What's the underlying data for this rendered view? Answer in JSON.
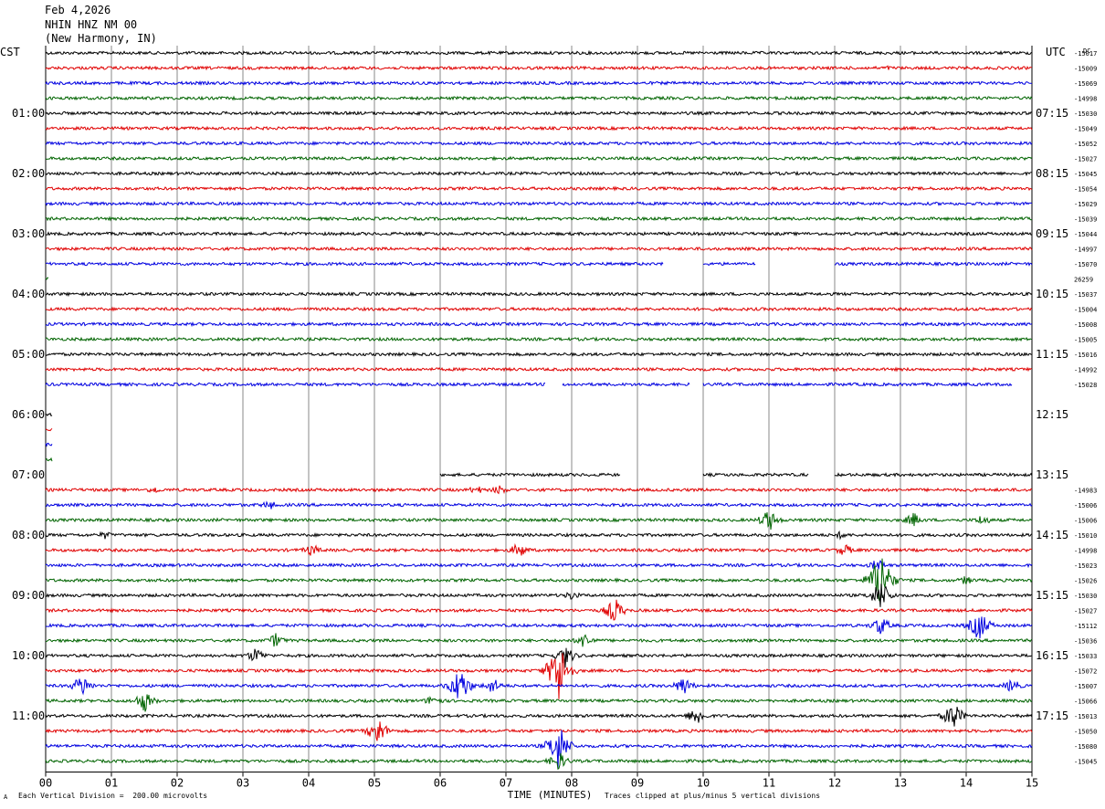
{
  "header": {
    "date": "Feb 4,2026",
    "station": "NHIN HNZ NM 00",
    "location": "(New Harmony, IN)"
  },
  "left_label": "CST",
  "right_label": "UTC",
  "dc_label": "DC",
  "footer": {
    "note_left": "Each Vertical Division =  200.00 microvolts",
    "note_right": "Traces clipped at plus/minus 5 vertical divisions",
    "corner_mark": "A"
  },
  "chart_data": {
    "type": "line",
    "title": "",
    "xlabel": "TIME (MINUTES)",
    "xlim": [
      0,
      15
    ],
    "x_ticks": [
      "00",
      "01",
      "02",
      "03",
      "04",
      "05",
      "06",
      "07",
      "08",
      "09",
      "10",
      "11",
      "12",
      "13",
      "14",
      "15"
    ],
    "trace_colors": [
      "#000000",
      "#e00000",
      "#0000e0",
      "#006400"
    ],
    "left_time_labels": [
      "01:00",
      "02:00",
      "03:00",
      "04:00",
      "05:00",
      "06:00",
      "07:00",
      "08:00",
      "09:00",
      "10:00",
      "11:00"
    ],
    "right_time_labels": [
      "07:15",
      "08:15",
      "09:15",
      "10:15",
      "11:15",
      "12:15",
      "13:15",
      "14:15",
      "15:15",
      "16:15",
      "17:15"
    ],
    "time_label_rows": [
      4,
      8,
      12,
      16,
      20,
      24,
      28,
      32,
      36,
      40,
      44
    ],
    "dc_values": [
      "-15017",
      "-15009",
      "-15069",
      "-14998",
      "-15030",
      "-15049",
      "-15052",
      "-15027",
      "-15045",
      "-15054",
      "-15029",
      "-15039",
      "-15044",
      "-14997",
      "-15070",
      "26259",
      "-15037",
      "-15004",
      "-15008",
      "-15005",
      "-15016",
      "-14992",
      "-15028",
      "",
      "",
      "",
      "",
      "",
      "",
      "-14983",
      "-15006",
      "-15006",
      "-15010",
      "-14998",
      "-15023",
      "-15026",
      "-15030",
      "-15027",
      "-15112",
      "-15036",
      "-15033",
      "-15072",
      "-15007",
      "-15066",
      "-15013",
      "-15050",
      "-15080",
      "-15045"
    ],
    "rows": 48,
    "gaps": [
      {
        "row": 14,
        "from": 9.4,
        "to": 10.0
      },
      {
        "row": 14,
        "from": 10.8,
        "to": 12.0
      },
      {
        "row": 15,
        "from": 0.05,
        "to": 15
      },
      {
        "row": 22,
        "from": 7.6,
        "to": 7.85
      },
      {
        "row": 22,
        "from": 9.8,
        "to": 10.0
      },
      {
        "row": 22,
        "from": 14.7,
        "to": 15
      },
      {
        "row": 23,
        "from": 0,
        "to": 15
      },
      {
        "row": 24,
        "from": 0.1,
        "to": 15
      },
      {
        "row": 25,
        "from": 0.1,
        "to": 15
      },
      {
        "row": 26,
        "from": 0.1,
        "to": 15
      },
      {
        "row": 27,
        "from": 0.1,
        "to": 15
      },
      {
        "row": 28,
        "from": 0,
        "to": 6.0
      },
      {
        "row": 28,
        "from": 8.75,
        "to": 10.0
      },
      {
        "row": 28,
        "from": 11.6,
        "to": 12.0
      }
    ],
    "events": [
      {
        "row": 1,
        "x": 12.8,
        "amp": 3
      },
      {
        "row": 29,
        "x": 1.65,
        "amp": 5
      },
      {
        "row": 29,
        "x": 6.55,
        "amp": 6
      },
      {
        "row": 29,
        "x": 6.9,
        "amp": 6
      },
      {
        "row": 30,
        "x": 3.4,
        "amp": 6
      },
      {
        "row": 31,
        "x": 11.0,
        "amp": 14
      },
      {
        "row": 31,
        "x": 13.2,
        "amp": 9
      },
      {
        "row": 31,
        "x": 14.25,
        "amp": 7
      },
      {
        "row": 32,
        "x": 0.9,
        "amp": 5
      },
      {
        "row": 32,
        "x": 12.1,
        "amp": 5
      },
      {
        "row": 33,
        "x": 4.05,
        "amp": 8
      },
      {
        "row": 33,
        "x": 7.2,
        "amp": 10
      },
      {
        "row": 33,
        "x": 12.15,
        "amp": 8
      },
      {
        "row": 34,
        "x": 12.65,
        "amp": 8
      },
      {
        "row": 35,
        "x": 12.7,
        "amp": 40
      },
      {
        "row": 35,
        "x": 14.0,
        "amp": 6
      },
      {
        "row": 36,
        "x": 8.0,
        "amp": 6
      },
      {
        "row": 36,
        "x": 12.7,
        "amp": 20
      },
      {
        "row": 37,
        "x": 8.65,
        "amp": 16
      },
      {
        "row": 38,
        "x": 12.7,
        "amp": 12
      },
      {
        "row": 38,
        "x": 14.2,
        "amp": 20
      },
      {
        "row": 39,
        "x": 3.5,
        "amp": 9
      },
      {
        "row": 39,
        "x": 8.2,
        "amp": 10
      },
      {
        "row": 40,
        "x": 3.2,
        "amp": 10
      },
      {
        "row": 40,
        "x": 7.9,
        "amp": 14
      },
      {
        "row": 41,
        "x": 7.8,
        "amp": 40
      },
      {
        "row": 42,
        "x": 0.55,
        "amp": 14
      },
      {
        "row": 42,
        "x": 6.3,
        "amp": 24
      },
      {
        "row": 42,
        "x": 6.8,
        "amp": 10
      },
      {
        "row": 42,
        "x": 9.7,
        "amp": 12
      },
      {
        "row": 42,
        "x": 14.7,
        "amp": 9
      },
      {
        "row": 43,
        "x": 1.5,
        "amp": 14
      },
      {
        "row": 43,
        "x": 5.9,
        "amp": 8
      },
      {
        "row": 44,
        "x": 9.9,
        "amp": 12
      },
      {
        "row": 44,
        "x": 13.8,
        "amp": 18
      },
      {
        "row": 45,
        "x": 5.05,
        "amp": 18
      },
      {
        "row": 46,
        "x": 7.8,
        "amp": 30
      },
      {
        "row": 47,
        "x": 7.8,
        "amp": 12
      }
    ]
  }
}
